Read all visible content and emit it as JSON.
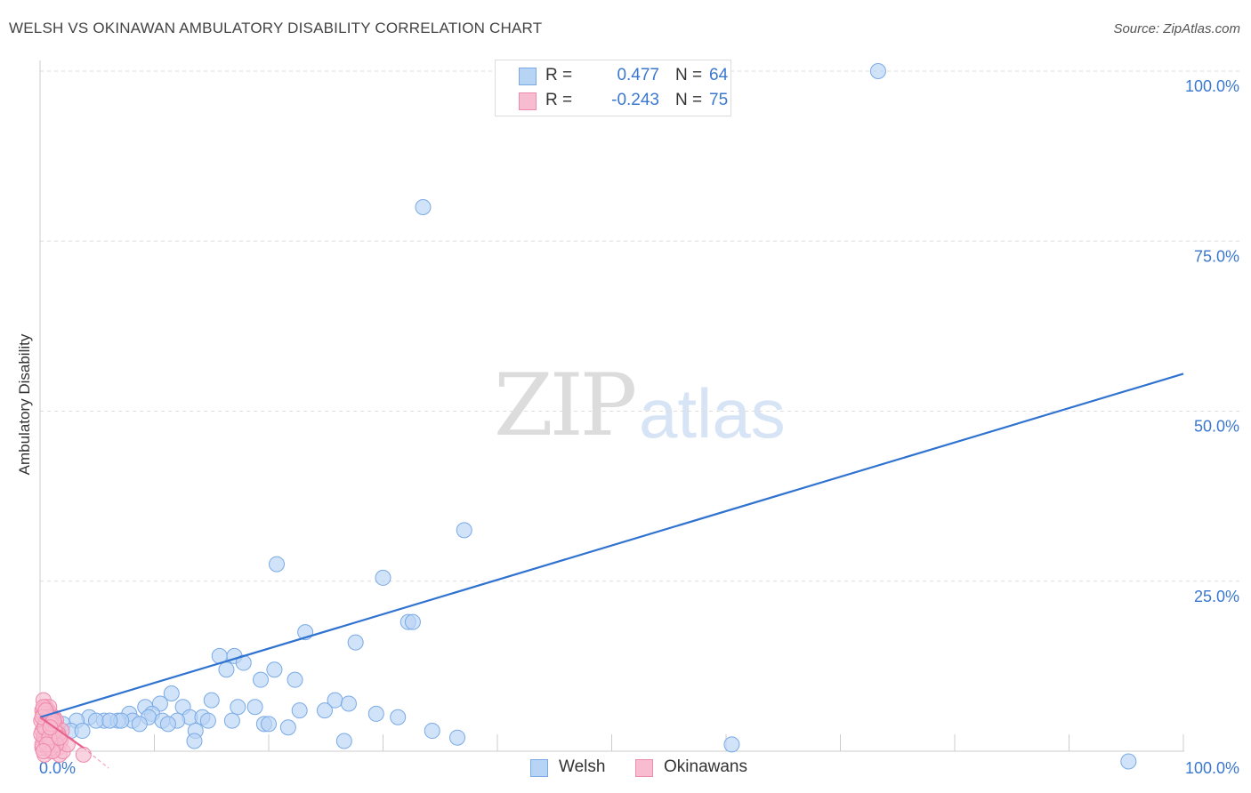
{
  "header": {
    "title": "WELSH VS OKINAWAN AMBULATORY DISABILITY CORRELATION CHART",
    "source": "Source: ZipAtlas.com"
  },
  "watermark": {
    "zip": "ZIP",
    "atlas": "atlas"
  },
  "legend_top": {
    "rows": [
      {
        "r_label": "R =",
        "r_value": "0.477",
        "n_label": "N =",
        "n_value": "64"
      },
      {
        "r_label": "R =",
        "r_value": "-0.243",
        "n_label": "N =",
        "n_value": "75"
      }
    ]
  },
  "legend_bottom": {
    "items": [
      {
        "label": "Welsh"
      },
      {
        "label": "Okinawans"
      }
    ]
  },
  "colors": {
    "welsh_fill": "#b8d4f5",
    "welsh_stroke": "#7aaae6",
    "welsh_line": "#2f72d0",
    "okinawan_fill": "#f8bcd0",
    "okinawan_stroke": "#ee8aab",
    "okinawan_line": "#e8628f",
    "tick_label": "#3a78cf",
    "grid": "#dddddd"
  },
  "chart_data": {
    "type": "scatter",
    "title": "WELSH VS OKINAWAN AMBULATORY DISABILITY CORRELATION CHART",
    "xlabel": "",
    "ylabel": "Ambulatory Disability",
    "xlim": [
      0,
      100
    ],
    "ylim": [
      0,
      100
    ],
    "x_tick_labels": [
      "0.0%",
      "100.0%"
    ],
    "y_ticks": [
      25,
      50,
      75,
      100
    ],
    "y_tick_labels": [
      "25.0%",
      "50.0%",
      "75.0%",
      "100.0%"
    ],
    "series": [
      {
        "name": "Welsh",
        "r": 0.477,
        "n": 64,
        "trend": {
          "x": [
            0,
            100
          ],
          "y": [
            5.0,
            55.5
          ]
        },
        "points": [
          [
            73.3,
            100.0
          ],
          [
            33.5,
            80.0
          ],
          [
            37.1,
            32.5
          ],
          [
            20.7,
            27.5
          ],
          [
            30.0,
            25.5
          ],
          [
            32.2,
            19.0
          ],
          [
            32.6,
            19.0
          ],
          [
            23.2,
            17.5
          ],
          [
            27.6,
            16.0
          ],
          [
            15.7,
            14.0
          ],
          [
            16.3,
            12.0
          ],
          [
            17.0,
            14.0
          ],
          [
            17.8,
            13.0
          ],
          [
            20.5,
            12.0
          ],
          [
            19.3,
            10.5
          ],
          [
            22.3,
            10.5
          ],
          [
            11.5,
            8.5
          ],
          [
            10.5,
            7.0
          ],
          [
            15.0,
            7.5
          ],
          [
            25.8,
            7.5
          ],
          [
            27.0,
            7.0
          ],
          [
            9.2,
            6.5
          ],
          [
            12.5,
            6.5
          ],
          [
            17.3,
            6.5
          ],
          [
            18.8,
            6.5
          ],
          [
            22.7,
            6.0
          ],
          [
            24.9,
            6.0
          ],
          [
            29.4,
            5.5
          ],
          [
            31.3,
            5.0
          ],
          [
            7.8,
            5.5
          ],
          [
            9.8,
            5.5
          ],
          [
            13.1,
            5.0
          ],
          [
            14.2,
            5.0
          ],
          [
            8.1,
            4.5
          ],
          [
            9.5,
            5.0
          ],
          [
            10.7,
            4.5
          ],
          [
            12.0,
            4.5
          ],
          [
            14.7,
            4.5
          ],
          [
            16.8,
            4.5
          ],
          [
            19.6,
            4.0
          ],
          [
            20.0,
            4.0
          ],
          [
            4.3,
            5.0
          ],
          [
            5.6,
            4.5
          ],
          [
            6.8,
            4.5
          ],
          [
            4.9,
            4.5
          ],
          [
            7.1,
            4.5
          ],
          [
            3.2,
            4.5
          ],
          [
            6.1,
            4.5
          ],
          [
            8.7,
            4.0
          ],
          [
            11.2,
            4.0
          ],
          [
            2.0,
            4.0
          ],
          [
            2.7,
            3.0
          ],
          [
            3.7,
            3.0
          ],
          [
            1.5,
            3.0
          ],
          [
            0.8,
            3.0
          ],
          [
            1.1,
            3.5
          ],
          [
            13.6,
            3.0
          ],
          [
            21.7,
            3.5
          ],
          [
            34.3,
            3.0
          ],
          [
            13.5,
            1.5
          ],
          [
            26.6,
            1.5
          ],
          [
            36.5,
            2.0
          ],
          [
            60.5,
            1.0
          ],
          [
            95.2,
            -1.5
          ]
        ]
      },
      {
        "name": "Okinawans",
        "r": -0.243,
        "n": 75,
        "trend": {
          "x": [
            0,
            3.8
          ],
          "y": [
            5.0,
            0.5
          ]
        },
        "trend_dashed": {
          "x": [
            3.8,
            6.0
          ],
          "y": [
            0.5,
            -2.5
          ]
        },
        "points": [
          [
            0.3,
            7.5
          ],
          [
            0.5,
            6.5
          ],
          [
            0.7,
            6.0
          ],
          [
            0.9,
            5.5
          ],
          [
            0.4,
            5.0
          ],
          [
            0.6,
            4.5
          ],
          [
            0.8,
            4.0
          ],
          [
            1.0,
            3.5
          ],
          [
            0.2,
            3.0
          ],
          [
            0.5,
            2.5
          ],
          [
            0.7,
            2.0
          ],
          [
            0.3,
            1.5
          ],
          [
            1.2,
            5.0
          ],
          [
            1.4,
            4.5
          ],
          [
            1.1,
            3.0
          ],
          [
            1.3,
            2.0
          ],
          [
            1.5,
            1.0
          ],
          [
            0.6,
            0.5
          ],
          [
            0.9,
            0.0
          ],
          [
            0.4,
            -0.5
          ],
          [
            1.6,
            0.5
          ],
          [
            1.8,
            1.5
          ],
          [
            1.7,
            -0.5
          ],
          [
            2.0,
            0.0
          ],
          [
            3.8,
            -0.5
          ],
          [
            2.4,
            1.0
          ],
          [
            0.2,
            6.0
          ],
          [
            0.8,
            6.5
          ],
          [
            1.0,
            4.5
          ],
          [
            1.2,
            3.5
          ],
          [
            0.5,
            3.5
          ],
          [
            0.3,
            2.0
          ],
          [
            0.7,
            1.0
          ],
          [
            0.9,
            2.5
          ],
          [
            1.4,
            2.5
          ],
          [
            0.6,
            5.5
          ],
          [
            0.4,
            4.0
          ],
          [
            1.1,
            1.5
          ],
          [
            0.2,
            0.5
          ],
          [
            0.8,
            3.0
          ],
          [
            1.3,
            4.0
          ],
          [
            1.5,
            3.0
          ],
          [
            0.1,
            4.5
          ],
          [
            0.3,
            5.5
          ],
          [
            0.6,
            2.0
          ],
          [
            1.0,
            0.5
          ],
          [
            0.9,
            5.0
          ],
          [
            0.5,
            1.5
          ],
          [
            1.9,
            3.0
          ],
          [
            0.7,
            3.5
          ],
          [
            0.4,
            2.5
          ],
          [
            1.2,
            2.0
          ],
          [
            0.2,
            1.0
          ],
          [
            0.8,
            4.5
          ],
          [
            1.6,
            2.5
          ],
          [
            0.3,
            6.5
          ],
          [
            0.5,
            4.0
          ],
          [
            1.0,
            2.0
          ],
          [
            0.6,
            3.0
          ],
          [
            1.4,
            1.0
          ],
          [
            0.9,
            1.5
          ],
          [
            0.1,
            2.5
          ],
          [
            1.1,
            0.0
          ],
          [
            0.7,
            5.0
          ],
          [
            0.4,
            3.5
          ],
          [
            1.3,
            3.0
          ],
          [
            0.2,
            5.0
          ],
          [
            0.8,
            2.0
          ],
          [
            0.6,
            1.0
          ],
          [
            1.0,
            4.0
          ],
          [
            0.5,
            6.0
          ],
          [
            1.7,
            2.0
          ],
          [
            0.3,
            0.0
          ],
          [
            1.2,
            4.5
          ],
          [
            0.9,
            3.5
          ]
        ]
      }
    ]
  }
}
